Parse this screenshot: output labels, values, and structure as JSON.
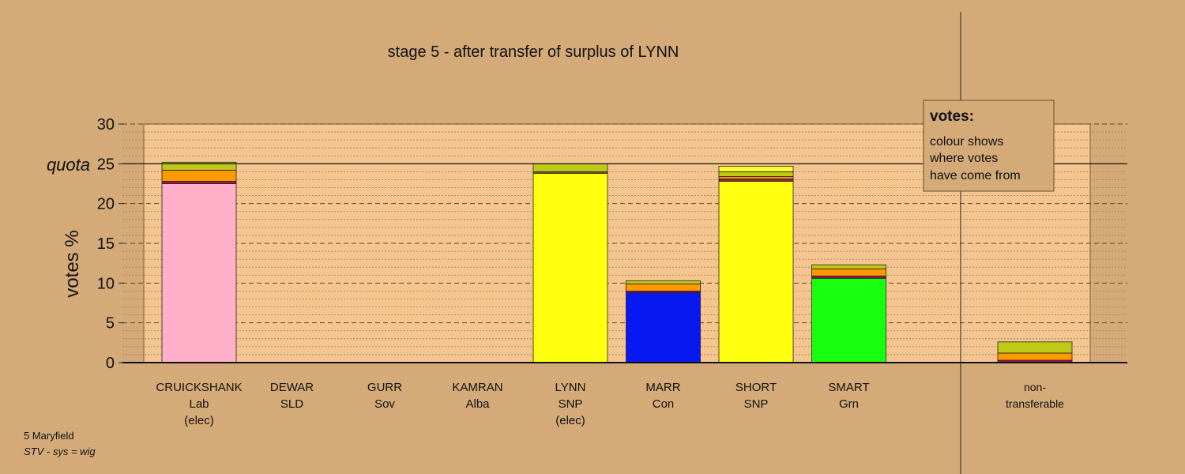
{
  "chart_data": {
    "type": "bar",
    "stacked": true,
    "title": "stage 5 - after transfer of surplus of LYNN",
    "ylabel": "votes %",
    "ylim": [
      0,
      30
    ],
    "yticks": [
      "0",
      "5",
      "10",
      "15",
      "20",
      "25",
      "30"
    ],
    "quota_label": "quota",
    "quota": 25,
    "grid": true,
    "legend_box": {
      "title": "votes:",
      "lines": [
        "colour shows",
        "where votes",
        "have come from"
      ]
    },
    "categories": [
      {
        "name": "CRUICKSHANK",
        "party": "Lab",
        "note": "(elec)"
      },
      {
        "name": "DEWAR",
        "party": "SLD",
        "note": ""
      },
      {
        "name": "GURR",
        "party": "Sov",
        "note": ""
      },
      {
        "name": "KAMRAN",
        "party": "Alba",
        "note": ""
      },
      {
        "name": "LYNN",
        "party": "SNP",
        "note": "(elec)"
      },
      {
        "name": "MARR",
        "party": "Con",
        "note": ""
      },
      {
        "name": "SHORT",
        "party": "SNP",
        "note": ""
      },
      {
        "name": "SMART",
        "party": "Grn",
        "note": ""
      }
    ],
    "nontransferable_label": [
      "non-",
      "transferable"
    ],
    "bars": [
      [
        {
          "value": 22.5,
          "color": "#ffb0c8"
        },
        {
          "value": 0.3,
          "color": "#a01840"
        },
        {
          "value": 1.4,
          "color": "#ff9900"
        },
        {
          "value": 1.0,
          "color": "#c0c818"
        }
      ],
      [],
      [],
      [],
      [
        {
          "value": 23.8,
          "color": "#ffff10"
        },
        {
          "value": 0.2,
          "color": "#806010"
        },
        {
          "value": 1.0,
          "color": "#c0c818"
        }
      ],
      [
        {
          "value": 8.8,
          "color": "#0818f0"
        },
        {
          "value": 0.2,
          "color": "#a01840"
        },
        {
          "value": 0.9,
          "color": "#ff9900"
        },
        {
          "value": 0.4,
          "color": "#c0c818"
        }
      ],
      [
        {
          "value": 22.8,
          "color": "#ffff10"
        },
        {
          "value": 0.3,
          "color": "#a01840"
        },
        {
          "value": 0.3,
          "color": "#ff9900"
        },
        {
          "value": 0.6,
          "color": "#c0c818"
        },
        {
          "value": 0.7,
          "color": "#ffff30"
        }
      ],
      [
        {
          "value": 10.6,
          "color": "#18ff10"
        },
        {
          "value": 0.3,
          "color": "#a01840"
        },
        {
          "value": 0.9,
          "color": "#ff9900"
        },
        {
          "value": 0.5,
          "color": "#c0c818"
        }
      ],
      [
        {
          "value": 0.3,
          "color": "#a01840"
        },
        {
          "value": 0.9,
          "color": "#ff9900"
        },
        {
          "value": 1.4,
          "color": "#c0c818"
        }
      ]
    ]
  },
  "footer": {
    "line1": "5 Maryfield",
    "line2": "STV - sys = wig"
  },
  "colors": {
    "background": "#d4aa78",
    "plot_area": "#f5c590"
  }
}
